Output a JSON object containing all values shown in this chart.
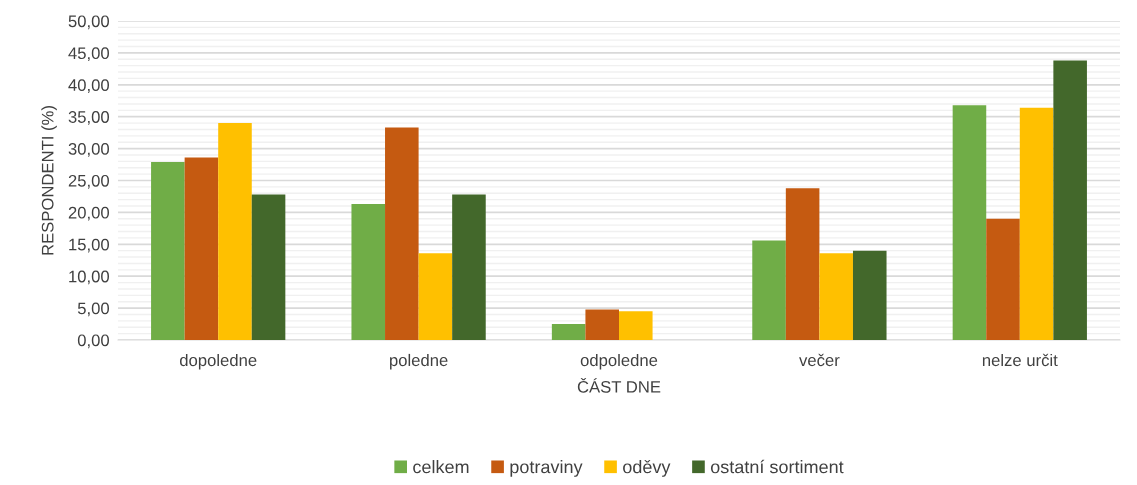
{
  "chart_data": {
    "type": "bar",
    "xlabel": "ČÁST DNE",
    "ylabel": "RESPONDENTI (%)",
    "categories": [
      "dopoledne",
      "poledne",
      "odpoledne",
      "večer",
      "nelze určit"
    ],
    "series": [
      {
        "name": "celkem",
        "color": "#70ad47",
        "values": [
          27.9,
          21.3,
          2.5,
          15.6,
          36.8
        ]
      },
      {
        "name": "potraviny",
        "color": "#c55a11",
        "values": [
          28.6,
          33.3,
          4.8,
          23.8,
          19.0
        ]
      },
      {
        "name": "oděvy",
        "color": "#ffc000",
        "values": [
          34.0,
          13.6,
          4.5,
          13.6,
          36.4
        ]
      },
      {
        "name": "ostatní sortiment",
        "color": "#43682b",
        "values": [
          22.8,
          22.8,
          0,
          14.0,
          43.8
        ]
      }
    ],
    "ylim": [
      0,
      50
    ],
    "yticks": [
      {
        "value": 0,
        "label": "0,00"
      },
      {
        "value": 1,
        "label": null
      },
      {
        "value": 2,
        "label": null
      },
      {
        "value": 3,
        "label": null
      },
      {
        "value": 4,
        "label": null
      },
      {
        "value": 5,
        "label": "5,00"
      },
      {
        "value": 6,
        "label": null
      },
      {
        "value": 7,
        "label": null
      },
      {
        "value": 8,
        "label": null
      },
      {
        "value": 9,
        "label": null
      },
      {
        "value": 10,
        "label": "10,00"
      },
      {
        "value": 11,
        "label": null
      },
      {
        "value": 12,
        "label": null
      },
      {
        "value": 13,
        "label": null
      },
      {
        "value": 14,
        "label": null
      },
      {
        "value": 15,
        "label": "15,00"
      },
      {
        "value": 16,
        "label": null
      },
      {
        "value": 17,
        "label": null
      },
      {
        "value": 18,
        "label": null
      },
      {
        "value": 19,
        "label": null
      },
      {
        "value": 20,
        "label": "20,00"
      },
      {
        "value": 21,
        "label": null
      },
      {
        "value": 22,
        "label": null
      },
      {
        "value": 23,
        "label": null
      },
      {
        "value": 24,
        "label": null
      },
      {
        "value": 25,
        "label": "25,00"
      },
      {
        "value": 26,
        "label": null
      },
      {
        "value": 27,
        "label": null
      },
      {
        "value": 28,
        "label": null
      },
      {
        "value": 29,
        "label": null
      },
      {
        "value": 30,
        "label": "30,00"
      },
      {
        "value": 31,
        "label": null
      },
      {
        "value": 32,
        "label": null
      },
      {
        "value": 33,
        "label": null
      },
      {
        "value": 34,
        "label": null
      },
      {
        "value": 35,
        "label": "35,00"
      },
      {
        "value": 36,
        "label": null
      },
      {
        "value": 37,
        "label": null
      },
      {
        "value": 38,
        "label": null
      },
      {
        "value": 39,
        "label": null
      },
      {
        "value": 40,
        "label": "40,00"
      },
      {
        "value": 41,
        "label": null
      },
      {
        "value": 42,
        "label": null
      },
      {
        "value": 43,
        "label": null
      },
      {
        "value": 44,
        "label": null
      },
      {
        "value": 45,
        "label": "45,00"
      },
      {
        "value": 46,
        "label": null
      },
      {
        "value": 47,
        "label": null
      },
      {
        "value": 48,
        "label": null
      },
      {
        "value": 49,
        "label": null
      },
      {
        "value": 50,
        "label": "50,00"
      }
    ],
    "grid": "y",
    "legend": "bottom"
  }
}
